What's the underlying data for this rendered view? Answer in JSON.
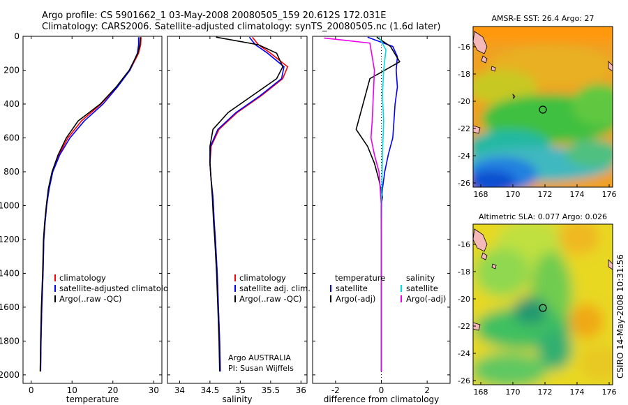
{
  "header": {
    "line1": "Argo profile: CS 5901662_1 03-May-2008 20080505_159 20.612S 172.031E",
    "line2": "Climatology: CARS2006. Satellite-adjusted climatology: synTS_20080505.nc (1.6d later)"
  },
  "side_stamp": "CSIRO 14-May-2008 10:31:56",
  "chart_data": [
    {
      "id": "temperature",
      "type": "line",
      "xlabel": "temperature",
      "ylabel": "",
      "xlim": [
        -2,
        32
      ],
      "ylim": [
        2050,
        0
      ],
      "xticks": [
        0,
        10,
        20,
        30
      ],
      "yticks": [
        0,
        200,
        400,
        600,
        800,
        1000,
        1200,
        1400,
        1600,
        1800,
        2000
      ],
      "legend": [
        "climatology",
        "satellite-adjusted climatology",
        "Argo(..raw -QC)"
      ],
      "series": [
        {
          "name": "climatology",
          "color": "#ff0000",
          "x": [
            26.9,
            26.8,
            26.3,
            24.2,
            20.9,
            17.1,
            12.3,
            9.0,
            6.8,
            5.2,
            4.3,
            3.8,
            3.4,
            3.1,
            2.9,
            2.6,
            2.4,
            2.3
          ],
          "y": [
            5,
            50,
            100,
            200,
            300,
            400,
            500,
            600,
            700,
            800,
            900,
            1000,
            1100,
            1200,
            1400,
            1600,
            1800,
            1980
          ]
        },
        {
          "name": "satellite-adjusted climatology",
          "color": "#0000ff",
          "x": [
            26.3,
            26.3,
            26.0,
            24.2,
            21.1,
            17.6,
            13.0,
            9.5,
            7.0,
            5.3,
            4.4,
            3.8,
            3.4,
            3.1,
            2.9,
            2.6,
            2.4,
            2.3
          ],
          "y": [
            5,
            50,
            100,
            200,
            300,
            400,
            500,
            600,
            700,
            800,
            900,
            1000,
            1100,
            1200,
            1400,
            1600,
            1800,
            1980
          ]
        },
        {
          "name": "Argo(..raw -QC)",
          "color": "#000000",
          "x": [
            26.7,
            26.6,
            26.1,
            24.0,
            20.8,
            16.9,
            11.5,
            8.6,
            6.6,
            5.1,
            4.2,
            3.7,
            3.3,
            3.0,
            2.8,
            2.5,
            2.3,
            2.2
          ],
          "y": [
            5,
            50,
            100,
            200,
            300,
            400,
            500,
            600,
            700,
            800,
            900,
            1000,
            1100,
            1200,
            1400,
            1600,
            1800,
            1980
          ]
        }
      ]
    },
    {
      "id": "salinity",
      "type": "line",
      "xlabel": "salinity",
      "ylabel": "",
      "xlim": [
        33.8,
        36.1
      ],
      "ylim": [
        2050,
        0
      ],
      "xticks": [
        34,
        34.5,
        35,
        35.5,
        36
      ],
      "yticks": [
        0,
        200,
        400,
        600,
        800,
        1000,
        1200,
        1400,
        1600,
        1800,
        2000
      ],
      "legend": [
        "climatology",
        "satellite adj. clim.",
        "Argo(..raw -QC)"
      ],
      "annotation": [
        "Argo AUSTRALIA",
        "PI: Susan Wijffels"
      ],
      "series": [
        {
          "name": "climatology",
          "color": "#ff0000",
          "x": [
            35.2,
            35.3,
            35.5,
            35.78,
            35.7,
            35.35,
            34.95,
            34.65,
            34.52,
            34.5,
            34.52,
            34.55,
            34.57,
            34.59,
            34.62,
            34.64,
            34.66,
            34.67
          ],
          "y": [
            5,
            50,
            100,
            180,
            250,
            350,
            450,
            550,
            650,
            750,
            850,
            950,
            1100,
            1200,
            1400,
            1600,
            1800,
            1980
          ]
        },
        {
          "name": "satellite adj. clim.",
          "color": "#0000ff",
          "x": [
            35.15,
            35.25,
            35.45,
            35.72,
            35.68,
            35.33,
            34.93,
            34.63,
            34.51,
            34.5,
            34.52,
            34.55,
            34.57,
            34.59,
            34.62,
            34.64,
            34.66,
            34.67
          ],
          "y": [
            5,
            50,
            100,
            180,
            250,
            350,
            450,
            550,
            650,
            750,
            850,
            950,
            1100,
            1200,
            1400,
            1600,
            1800,
            1980
          ]
        },
        {
          "name": "Argo(..raw -QC)",
          "color": "#000000",
          "x": [
            34.6,
            35.3,
            35.6,
            35.7,
            35.6,
            35.2,
            34.8,
            34.55,
            34.5,
            34.5,
            34.52,
            34.54,
            34.56,
            34.58,
            34.61,
            34.63,
            34.65,
            34.66
          ],
          "y": [
            5,
            50,
            100,
            180,
            250,
            350,
            450,
            550,
            650,
            750,
            850,
            950,
            1100,
            1200,
            1400,
            1600,
            1800,
            1980
          ]
        }
      ]
    },
    {
      "id": "difference",
      "type": "line",
      "xlabel": "difference from climatology",
      "ylabel": "",
      "xlim": [
        -3,
        3
      ],
      "ylim": [
        2050,
        0
      ],
      "xticks": [
        -2,
        0,
        2
      ],
      "yticks": [
        0,
        200,
        400,
        600,
        800,
        1000,
        1200,
        1400,
        1600,
        1800,
        2000
      ],
      "legend_left": [
        "temperature",
        "satellite",
        "Argo(-adj)"
      ],
      "legend_right": [
        "salinity",
        "satellite",
        "Argo(-adj)"
      ],
      "series": [
        {
          "name": "temperature satellite",
          "color": "#0000ff",
          "x": [
            -0.6,
            0.5,
            0.7,
            0.65,
            0.7,
            0.6,
            0.55,
            0.5,
            0.3,
            0.15,
            0.05,
            0.0,
            0.0,
            0.0,
            0.0
          ],
          "y": [
            5,
            60,
            120,
            200,
            300,
            400,
            500,
            600,
            700,
            800,
            900,
            1000,
            1400,
            1800,
            1980
          ]
        },
        {
          "name": "temperature Argo(-adj)",
          "color": "#000000",
          "x": [
            -0.2,
            0.4,
            0.8,
            -0.5,
            -0.7,
            -0.9,
            -1.1,
            -0.6,
            -0.3,
            -0.1,
            0.05,
            0.0,
            0.0,
            0.0,
            0.0
          ],
          "y": [
            5,
            60,
            150,
            250,
            350,
            450,
            550,
            650,
            750,
            850,
            950,
            1000,
            1400,
            1800,
            1980
          ]
        },
        {
          "name": "salinity satellite",
          "color": "#00dddd",
          "x": [
            -0.1,
            0.2,
            0.1,
            0.05,
            0.1,
            0.05,
            0.02,
            0.0,
            0.0,
            0.0
          ],
          "y": [
            5,
            80,
            200,
            350,
            500,
            700,
            900,
            1200,
            1600,
            1980
          ]
        },
        {
          "name": "salinity Argo(-adj)",
          "color": "#ee00ee",
          "x": [
            -2.5,
            -0.5,
            -0.3,
            -0.35,
            -0.4,
            -0.45,
            -0.3,
            -0.1,
            0.0,
            0.0
          ],
          "y": [
            10,
            40,
            200,
            350,
            500,
            600,
            700,
            800,
            1000,
            1980
          ]
        }
      ]
    }
  ],
  "maps": [
    {
      "id": "sst",
      "title": "AMSR-E SST: 26.4  Argo: 27",
      "xticks": [
        "168",
        "170",
        "172",
        "174",
        "176"
      ],
      "yticks": [
        "-16",
        "-18",
        "-20",
        "-22",
        "-24",
        "-26"
      ]
    },
    {
      "id": "sla",
      "title": "Altimetric SLA: 0.077  Argo: 0.026",
      "xticks": [
        "168",
        "170",
        "172",
        "174",
        "176"
      ],
      "yticks": [
        "-16",
        "-18",
        "-20",
        "-22",
        "-24",
        "-26"
      ]
    }
  ]
}
